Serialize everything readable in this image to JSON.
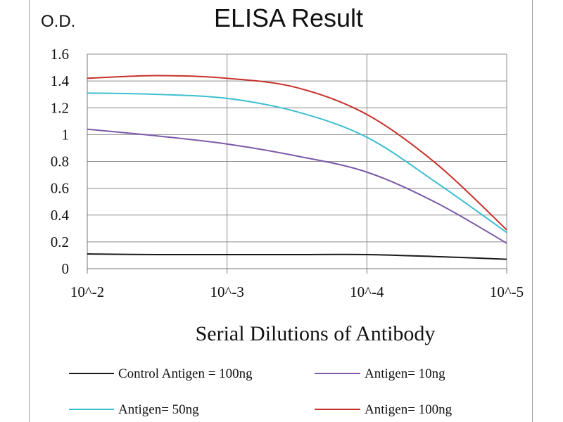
{
  "chart_data": {
    "type": "line",
    "title": "ELISA Result",
    "ylabel": "O.D.",
    "xlabel": "Serial Dilutions  of Antibody",
    "categories": [
      "10^-2",
      "10^-3",
      "10^-4",
      "10^-5"
    ],
    "x": [
      0,
      0.5,
      1,
      1.5,
      2,
      2.5,
      3
    ],
    "yticks": [
      "0",
      "0.2",
      "0.4",
      "0.6",
      "0.8",
      "1",
      "1.2",
      "1.4",
      "1.6"
    ],
    "ylim": [
      0,
      1.6
    ],
    "grid": true,
    "legend_position": "bottom",
    "series": [
      {
        "name": "Control Antigen = 100ng",
        "color": "#1a1a1a",
        "values": [
          0.11,
          0.105,
          0.105,
          0.105,
          0.105,
          0.09,
          0.07
        ]
      },
      {
        "name": "Antigen= 10ng",
        "color": "#7a5aa8",
        "values": [
          1.04,
          0.99,
          0.93,
          0.84,
          0.72,
          0.49,
          0.19
        ]
      },
      {
        "name": "Antigen= 50ng",
        "color": "#3dbfd0",
        "values": [
          1.31,
          1.3,
          1.27,
          1.17,
          0.98,
          0.64,
          0.27
        ]
      },
      {
        "name": "Antigen= 100ng",
        "color": "#c8302a",
        "values": [
          1.42,
          1.44,
          1.42,
          1.35,
          1.15,
          0.78,
          0.29
        ]
      }
    ]
  }
}
